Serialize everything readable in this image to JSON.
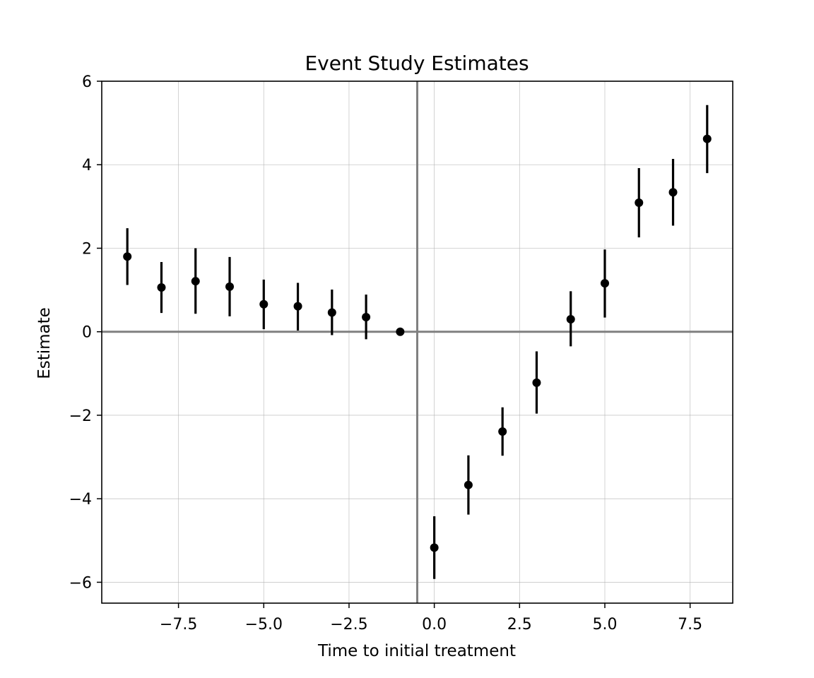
{
  "chart_data": {
    "type": "scatter",
    "title": "Event Study Estimates",
    "xlabel": "Time to initial treatment",
    "ylabel": "Estimate",
    "xlim": [
      -9.75,
      8.75
    ],
    "ylim": [
      -6.5,
      6.0
    ],
    "xticks": [
      -7.5,
      -5.0,
      -2.5,
      0.0,
      2.5,
      5.0,
      7.5
    ],
    "xtick_labels": [
      "−7.5",
      "−5.0",
      "−2.5",
      "0.0",
      "2.5",
      "5.0",
      "7.5"
    ],
    "yticks": [
      -6,
      -4,
      -2,
      0,
      2,
      4,
      6
    ],
    "ytick_labels": [
      "−6",
      "−4",
      "−2",
      "0",
      "2",
      "4",
      "6"
    ],
    "grid": true,
    "reference_lines": {
      "horizontal_y": 0,
      "vertical_x": -0.5,
      "color": "#808080"
    },
    "point_color": "#000000",
    "points": [
      {
        "x": -9,
        "y": 1.8,
        "lower": 1.12,
        "upper": 2.48
      },
      {
        "x": -8,
        "y": 1.06,
        "lower": 0.45,
        "upper": 1.67
      },
      {
        "x": -7,
        "y": 1.21,
        "lower": 0.43,
        "upper": 2.0
      },
      {
        "x": -6,
        "y": 1.08,
        "lower": 0.37,
        "upper": 1.79
      },
      {
        "x": -5,
        "y": 0.66,
        "lower": 0.06,
        "upper": 1.25
      },
      {
        "x": -4,
        "y": 0.61,
        "lower": 0.03,
        "upper": 1.17
      },
      {
        "x": -3,
        "y": 0.46,
        "lower": -0.08,
        "upper": 1.01
      },
      {
        "x": -2,
        "y": 0.35,
        "lower": -0.18,
        "upper": 0.89
      },
      {
        "x": -1,
        "y": 0.0,
        "lower": 0.0,
        "upper": 0.0
      },
      {
        "x": 0,
        "y": -5.17,
        "lower": -5.92,
        "upper": -4.42
      },
      {
        "x": 1,
        "y": -3.67,
        "lower": -4.38,
        "upper": -2.96
      },
      {
        "x": 2,
        "y": -2.39,
        "lower": -2.97,
        "upper": -1.81
      },
      {
        "x": 3,
        "y": -1.22,
        "lower": -1.96,
        "upper": -0.47
      },
      {
        "x": 4,
        "y": 0.3,
        "lower": -0.35,
        "upper": 0.97
      },
      {
        "x": 5,
        "y": 1.16,
        "lower": 0.34,
        "upper": 1.97
      },
      {
        "x": 6,
        "y": 3.09,
        "lower": 2.26,
        "upper": 3.92
      },
      {
        "x": 7,
        "y": 3.34,
        "lower": 2.54,
        "upper": 4.14
      },
      {
        "x": 8,
        "y": 4.62,
        "lower": 3.8,
        "upper": 5.43
      }
    ]
  }
}
